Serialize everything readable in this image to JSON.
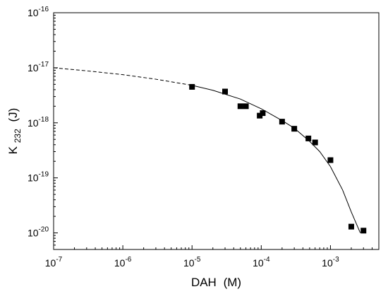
{
  "chart_data": {
    "type": "scatter",
    "xscale": "log",
    "yscale": "log",
    "xlim": [
      1e-07,
      0.005
    ],
    "ylim": [
      5e-21,
      1e-16
    ],
    "xlabel": {
      "base": "DAH",
      "unit": "(M)"
    },
    "ylabel": {
      "base": "K",
      "sub": "232",
      "unit": "(J)"
    },
    "xticks": [
      {
        "value": 1e-07,
        "base": "10",
        "exp": "-7"
      },
      {
        "value": 1e-06,
        "base": "10",
        "exp": "-6"
      },
      {
        "value": 1e-05,
        "base": "10",
        "exp": "-5"
      },
      {
        "value": 0.0001,
        "base": "10",
        "exp": "-4"
      },
      {
        "value": 0.001,
        "base": "10",
        "exp": "-3"
      }
    ],
    "yticks": [
      {
        "value": 1e-20,
        "base": "10",
        "exp": "-20"
      },
      {
        "value": 1e-19,
        "base": "10",
        "exp": "-19"
      },
      {
        "value": 1e-18,
        "base": "10",
        "exp": "-18"
      },
      {
        "value": 1e-17,
        "base": "10",
        "exp": "-17"
      },
      {
        "value": 1e-16,
        "base": "10",
        "exp": "-16"
      }
    ],
    "points": [
      {
        "x": 1e-05,
        "y": 4.5e-18
      },
      {
        "x": 3e-05,
        "y": 3.7e-18
      },
      {
        "x": 5e-05,
        "y": 2e-18
      },
      {
        "x": 6e-05,
        "y": 2e-18
      },
      {
        "x": 9.5e-05,
        "y": 1.35e-18
      },
      {
        "x": 0.000105,
        "y": 1.5e-18
      },
      {
        "x": 0.0002,
        "y": 1.05e-18
      },
      {
        "x": 0.0003,
        "y": 7.8e-19
      },
      {
        "x": 0.00048,
        "y": 5.2e-19
      },
      {
        "x": 0.0006,
        "y": 4.4e-19
      },
      {
        "x": 0.001,
        "y": 2.1e-19
      },
      {
        "x": 0.002,
        "y": 1.3e-20
      },
      {
        "x": 0.003,
        "y": 1.1e-20
      }
    ],
    "fit_curve": {
      "dashed": [
        {
          "x": 1e-07,
          "y": 1e-17
        },
        {
          "x": 3e-07,
          "y": 8.8e-18
        },
        {
          "x": 1e-06,
          "y": 7.5e-18
        },
        {
          "x": 3e-06,
          "y": 6.2e-18
        },
        {
          "x": 1e-05,
          "y": 4.8e-18
        }
      ],
      "solid": [
        {
          "x": 1e-05,
          "y": 4.8e-18
        },
        {
          "x": 2e-05,
          "y": 3.9e-18
        },
        {
          "x": 5e-05,
          "y": 2.7e-18
        },
        {
          "x": 0.0001,
          "y": 1.8e-18
        },
        {
          "x": 0.0002,
          "y": 1.1e-18
        },
        {
          "x": 0.0003,
          "y": 8e-19
        },
        {
          "x": 0.0005,
          "y": 4.6e-19
        },
        {
          "x": 0.0007,
          "y": 3e-19
        },
        {
          "x": 0.001,
          "y": 1.6e-19
        },
        {
          "x": 0.0015,
          "y": 6e-20
        },
        {
          "x": 0.002,
          "y": 2.4e-20
        },
        {
          "x": 0.0027,
          "y": 1e-20
        }
      ]
    },
    "grid": false,
    "legend": "none",
    "colors": {
      "marker": "#000000",
      "line": "#000000",
      "axis": "#000000"
    }
  }
}
